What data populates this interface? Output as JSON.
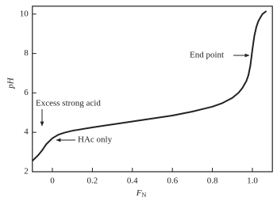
{
  "chart_data": {
    "type": "line",
    "x_label": "F",
    "x_label_subscript": "N",
    "y_label": "pH",
    "x": [
      -0.1,
      -0.07,
      -0.05,
      -0.03,
      0,
      0.03,
      0.06,
      0.1,
      0.2,
      0.3,
      0.4,
      0.5,
      0.6,
      0.7,
      0.8,
      0.85,
      0.9,
      0.93,
      0.95,
      0.97,
      0.98,
      0.99,
      1.0,
      1.01,
      1.02,
      1.03,
      1.05,
      1.07
    ],
    "series": [
      {
        "name": "pH",
        "color": "#222222",
        "values": [
          2.55,
          2.85,
          3.1,
          3.4,
          3.7,
          3.88,
          3.98,
          4.08,
          4.25,
          4.4,
          4.55,
          4.7,
          4.85,
          5.05,
          5.3,
          5.48,
          5.75,
          6.0,
          6.25,
          6.6,
          6.9,
          7.4,
          8.2,
          8.9,
          9.35,
          9.65,
          10.0,
          10.15
        ]
      }
    ],
    "xlim": [
      -0.1,
      1.1
    ],
    "ylim": [
      2,
      10.4
    ],
    "xticks": [
      0,
      0.2,
      0.4,
      0.6,
      0.8,
      {
        "value": 1,
        "label": "1.0"
      }
    ],
    "yticks": [
      2,
      4,
      6,
      8,
      10
    ],
    "annotations": [
      "End point",
      "Excess strong acid",
      "HAc only"
    ]
  }
}
